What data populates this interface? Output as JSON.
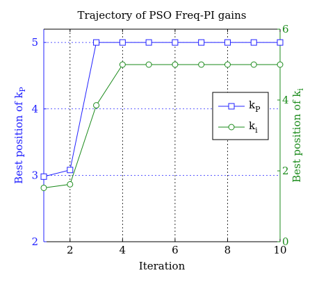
{
  "chart_data": {
    "type": "line",
    "title": "Trajectory of PSO Freq-PI gains",
    "xlabel": "Iteration",
    "x": [
      1,
      2,
      3,
      4,
      5,
      6,
      7,
      8,
      9,
      10
    ],
    "xlim": [
      1,
      10
    ],
    "xticks": [
      2,
      4,
      6,
      8,
      10
    ],
    "grid": true,
    "legend_position": "right",
    "left_axis": {
      "label": "Best position of k",
      "label_sub": "P",
      "lim": [
        2,
        5.2
      ],
      "ticks": [
        2,
        3,
        4,
        5
      ],
      "color": "#2020ff"
    },
    "right_axis": {
      "label": "Best position of k",
      "label_sub": "i",
      "lim": [
        0,
        6
      ],
      "ticks": [
        0,
        2,
        4,
        6
      ],
      "color": "#1a8a1a"
    },
    "series": [
      {
        "name": "k",
        "name_sub": "P",
        "axis": "left",
        "marker": "square",
        "color": "#2020ff",
        "values": [
          2.98,
          3.08,
          5.0,
          5.0,
          5.0,
          5.0,
          5.0,
          5.0,
          5.0,
          5.0
        ]
      },
      {
        "name": "k",
        "name_sub": "i",
        "axis": "right",
        "marker": "circle",
        "color": "#1a8a1a",
        "values": [
          1.52,
          1.62,
          3.85,
          5.0,
          5.0,
          5.0,
          5.0,
          5.0,
          5.0,
          5.0
        ]
      }
    ]
  }
}
